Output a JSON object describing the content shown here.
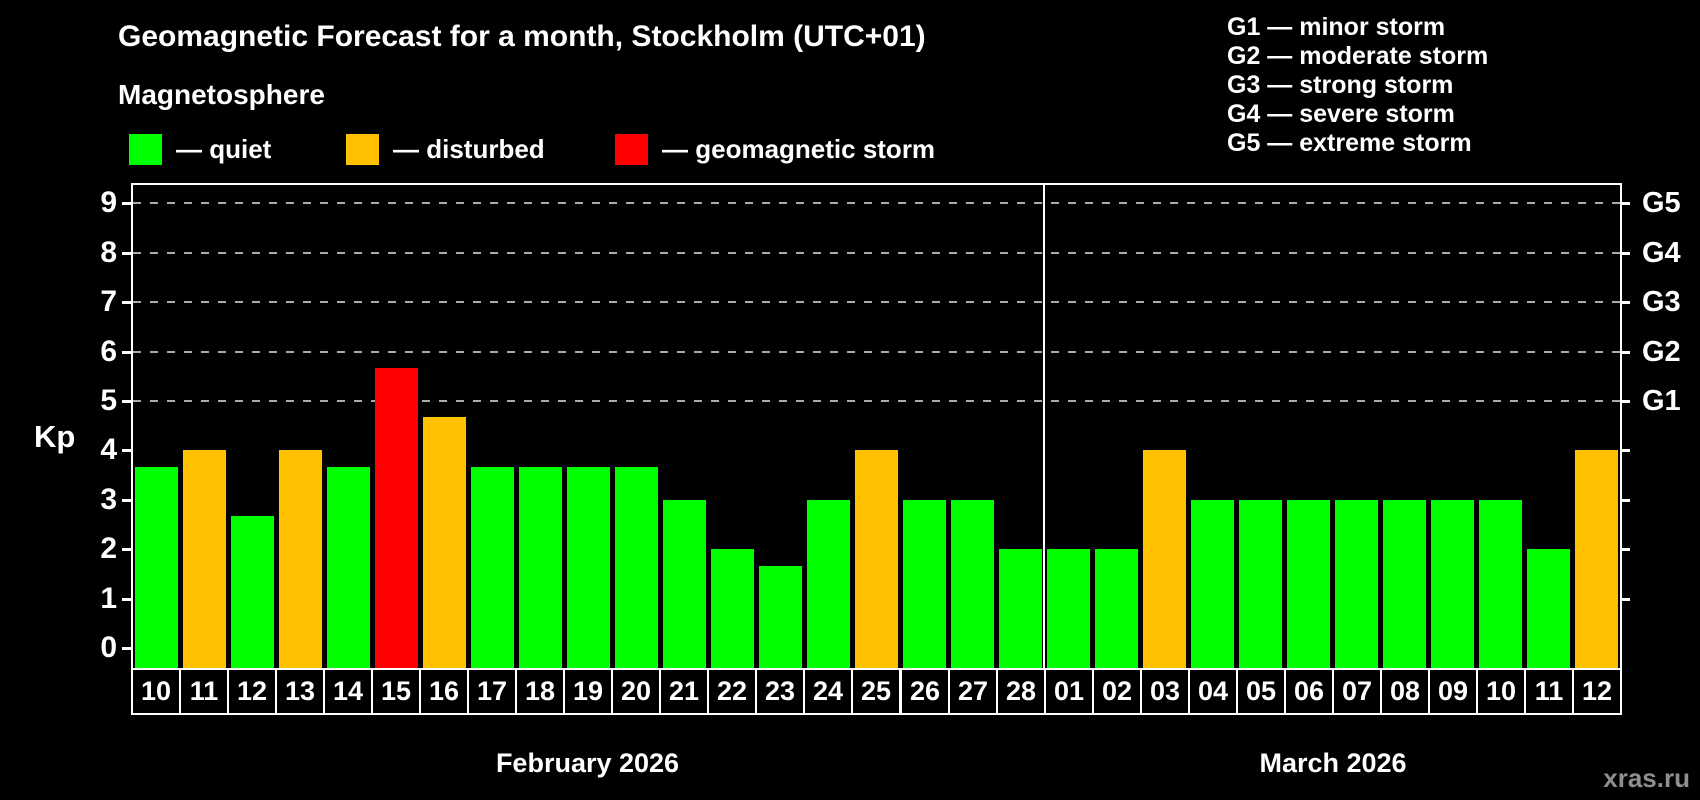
{
  "title": "Geomagnetic Forecast for a month, Stockholm (UTC+01)",
  "subtitle": "Magnetosphere",
  "bar_legend": [
    {
      "key": "quiet",
      "label": "— quiet",
      "color": "#00FF00"
    },
    {
      "key": "disturbed",
      "label": "— disturbed",
      "color": "#FFC000"
    },
    {
      "key": "storm",
      "label": "— geomagnetic storm",
      "color": "#FF0000"
    }
  ],
  "g_legend": [
    {
      "label": "G1 — minor storm"
    },
    {
      "label": "G2 — moderate storm"
    },
    {
      "label": "G3 — strong storm"
    },
    {
      "label": "G4 — severe storm"
    },
    {
      "label": "G5 — extreme storm"
    }
  ],
  "watermark": "xras.ru",
  "chart_data": {
    "type": "bar",
    "title": "Geomagnetic Forecast for a month, Stockholm (UTC+01)",
    "subtitle": "Magnetosphere",
    "ylabel": "Kp",
    "ylim": [
      0,
      9
    ],
    "y_ticks": [
      0,
      1,
      2,
      3,
      4,
      5,
      6,
      7,
      8,
      9
    ],
    "grid_levels": [
      5,
      6,
      7,
      8,
      9
    ],
    "grid_style": "dashed",
    "right_axis_labels": [
      {
        "kp": 5,
        "label": "G1"
      },
      {
        "kp": 6,
        "label": "G2"
      },
      {
        "kp": 7,
        "label": "G3"
      },
      {
        "kp": 8,
        "label": "G4"
      },
      {
        "kp": 9,
        "label": "G5"
      }
    ],
    "status_colors": {
      "quiet": "#00FF00",
      "disturbed": "#FFC000",
      "storm": "#FF0000"
    },
    "months": [
      {
        "label": "February 2026",
        "days": [
          "10",
          "11",
          "12",
          "13",
          "14",
          "15",
          "16",
          "17",
          "18",
          "19",
          "20",
          "21",
          "22",
          "23",
          "24",
          "25",
          "26",
          "27",
          "28"
        ],
        "values": [
          3.67,
          4,
          2.67,
          4,
          3.67,
          5.67,
          4.67,
          3.67,
          3.67,
          3.67,
          3.67,
          3,
          2,
          1.67,
          3,
          4,
          3,
          3,
          2
        ],
        "statuses": [
          "quiet",
          "disturbed",
          "quiet",
          "disturbed",
          "quiet",
          "storm",
          "disturbed",
          "quiet",
          "quiet",
          "quiet",
          "quiet",
          "quiet",
          "quiet",
          "quiet",
          "quiet",
          "disturbed",
          "quiet",
          "quiet",
          "quiet"
        ]
      },
      {
        "label": "March 2026",
        "days": [
          "01",
          "02",
          "03",
          "04",
          "05",
          "06",
          "07",
          "08",
          "09",
          "10",
          "11",
          "12"
        ],
        "values": [
          2,
          2,
          4,
          3,
          3,
          3,
          3,
          3,
          3,
          3,
          2,
          4
        ],
        "statuses": [
          "quiet",
          "quiet",
          "disturbed",
          "quiet",
          "quiet",
          "quiet",
          "quiet",
          "quiet",
          "quiet",
          "quiet",
          "quiet",
          "disturbed"
        ]
      }
    ]
  }
}
